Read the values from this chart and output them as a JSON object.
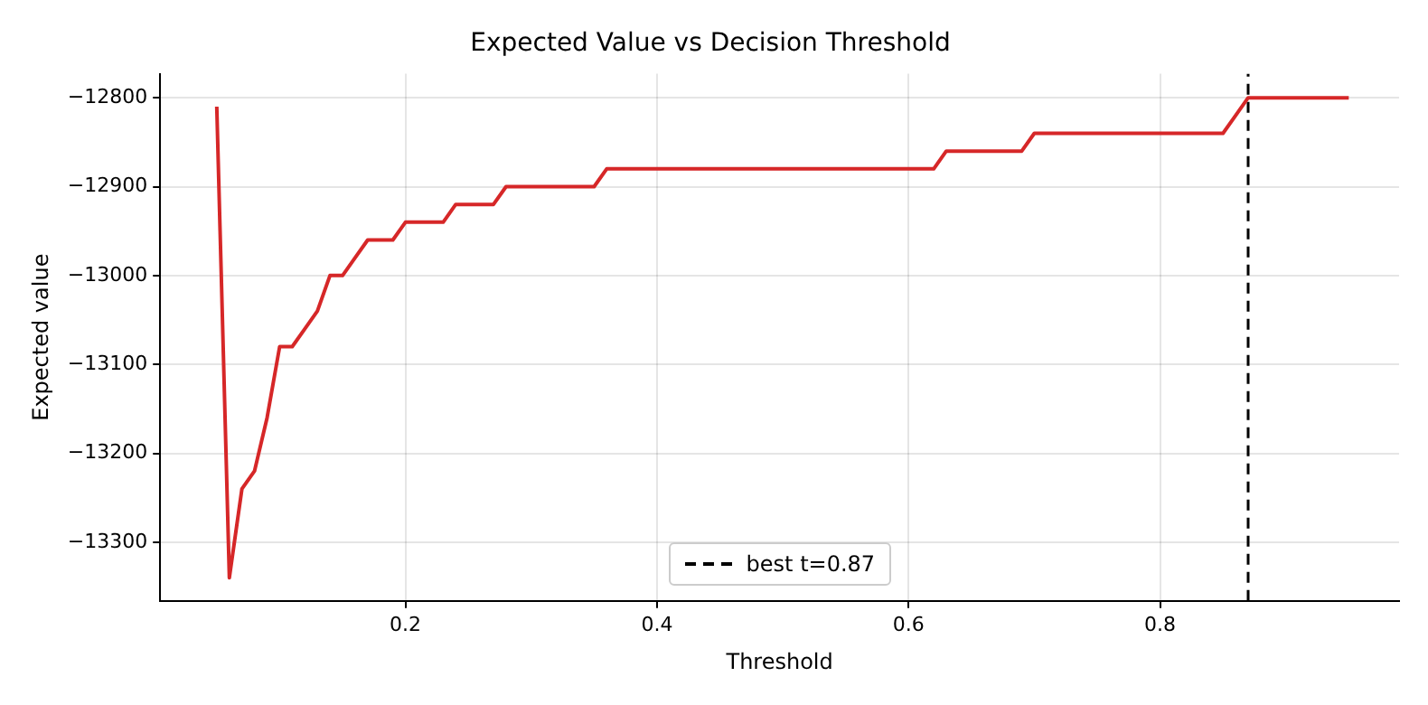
{
  "chart_data": {
    "type": "line",
    "title": "Expected Value vs Decision Threshold",
    "xlabel": "Threshold",
    "ylabel": "Expected value",
    "series": [
      {
        "color": "#d62728",
        "x": [
          0.05,
          0.06,
          0.07,
          0.08,
          0.09,
          0.1,
          0.11,
          0.12,
          0.13,
          0.14,
          0.15,
          0.16,
          0.17,
          0.19,
          0.2,
          0.23,
          0.24,
          0.27,
          0.28,
          0.35,
          0.36,
          0.62,
          0.63,
          0.69,
          0.7,
          0.85,
          0.86,
          0.87,
          0.95
        ],
        "values": [
          -12810,
          -13340,
          -13240,
          -13220,
          -13160,
          -13080,
          -13080,
          -13060,
          -13040,
          -13000,
          -13000,
          -12980,
          -12960,
          -12960,
          -12940,
          -12940,
          -12920,
          -12920,
          -12900,
          -12900,
          -12880,
          -12880,
          -12860,
          -12860,
          -12840,
          -12840,
          -12820,
          -12800,
          -12800
        ]
      }
    ],
    "xlim": [
      0.005,
      0.99
    ],
    "xticks": [
      0.2,
      0.4,
      0.6,
      0.8
    ],
    "ylim": [
      -13366,
      -12773
    ],
    "yticks": [
      -13300,
      -13200,
      -13100,
      -13000,
      -12900,
      -12800
    ],
    "ref_lines": [
      {
        "axis": "x",
        "value": 0.87,
        "label": "best t=0.87",
        "color": "#000000",
        "line_style": "dashed"
      }
    ],
    "grid": true,
    "legend": "bottom",
    "line_style": "solid",
    "marker": "none"
  }
}
